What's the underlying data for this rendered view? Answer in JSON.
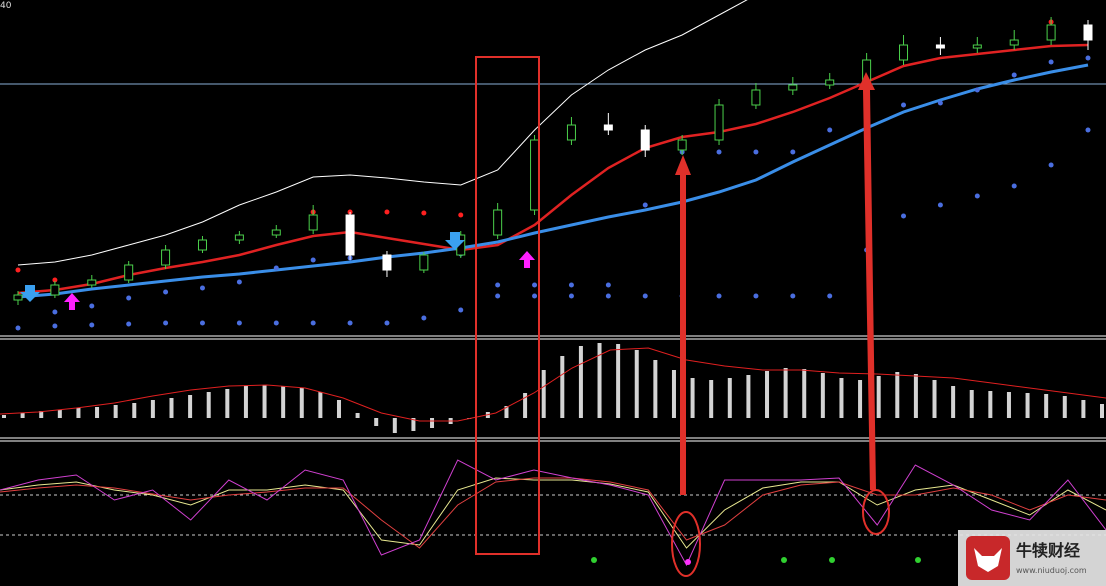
{
  "top_label": "40",
  "watermark": {
    "name": "牛犊财经",
    "url": "www.niuduoj.com"
  },
  "chart_data": [
    {
      "type": "candlestick",
      "ylim": [
        0,
        335
      ],
      "up_color": "#4bd14b",
      "down_color": "#ffffff",
      "open": [
        35,
        40,
        50,
        55,
        70,
        85,
        95,
        100,
        105,
        120,
        80,
        65,
        80,
        100,
        125,
        195,
        210,
        205,
        185,
        195,
        230,
        245,
        250,
        255,
        275,
        290,
        287,
        290,
        295,
        310
      ],
      "high": [
        44,
        54,
        60,
        74,
        90,
        99,
        104,
        110,
        130,
        123,
        84,
        83,
        104,
        132,
        200,
        218,
        222,
        210,
        200,
        236,
        252,
        258,
        262,
        282,
        300,
        298,
        298,
        305,
        318,
        315
      ],
      "low": [
        30,
        37,
        47,
        52,
        66,
        82,
        91,
        97,
        101,
        75,
        58,
        62,
        77,
        96,
        120,
        190,
        200,
        178,
        180,
        190,
        226,
        240,
        246,
        250,
        270,
        280,
        282,
        285,
        290,
        285
      ],
      "close": [
        40,
        50,
        55,
        70,
        85,
        95,
        100,
        105,
        120,
        80,
        65,
        80,
        100,
        125,
        195,
        210,
        205,
        185,
        195,
        230,
        245,
        250,
        255,
        275,
        290,
        287,
        290,
        295,
        310,
        295
      ],
      "series": [
        {
          "style": "line",
          "color": "#ffffff",
          "width": 1,
          "values": [
            70,
            73,
            80,
            90,
            100,
            113,
            130,
            143,
            158,
            160,
            157,
            153,
            150,
            165,
            205,
            240,
            265,
            285,
            300,
            320,
            340,
            null,
            null,
            null,
            null,
            null,
            null,
            null,
            null,
            null
          ]
        },
        {
          "style": "line",
          "color": "#e02222",
          "width": 2.5,
          "values": [
            42,
            45,
            51,
            60,
            67,
            73,
            80,
            90,
            99,
            103,
            97,
            91,
            85,
            90,
            110,
            140,
            167,
            187,
            198,
            203,
            211,
            223,
            237,
            253,
            269,
            277,
            281,
            285,
            289,
            290
          ]
        },
        {
          "style": "line",
          "color": "#3a8ee8",
          "width": 3,
          "values": [
            38,
            41,
            46,
            50,
            54,
            58,
            61,
            65,
            69,
            73,
            78,
            82,
            87,
            93,
            102,
            110,
            118,
            125,
            133,
            143,
            155,
            173,
            190,
            207,
            223,
            235,
            246,
            255,
            263,
            270
          ]
        },
        {
          "style": "dots",
          "color": "#4a6ee0",
          "values": [
            7,
            9,
            10,
            11,
            12,
            12,
            12,
            12,
            12,
            12,
            12,
            17,
            25,
            39,
            39,
            39,
            39,
            39,
            39,
            39,
            39,
            39,
            39,
            85,
            119,
            130,
            139,
            149,
            170,
            205
          ]
        },
        {
          "style": "dots",
          "color": "#4a6ee0",
          "values": [
            null,
            23,
            29,
            37,
            43,
            47,
            53,
            67,
            75,
            77,
            77,
            79,
            81,
            50,
            50,
            50,
            50,
            130,
            183,
            183,
            183,
            183,
            205,
            230,
            230,
            232,
            245,
            260,
            273,
            277
          ]
        },
        {
          "style": "dots",
          "color": "#ff2020",
          "values": [
            65,
            55,
            null,
            null,
            null,
            null,
            null,
            null,
            123,
            123,
            123,
            122,
            120,
            115,
            null,
            null,
            null,
            null,
            null,
            null,
            null,
            null,
            null,
            null,
            null,
            null,
            null,
            null,
            313,
            null
          ]
        }
      ]
    },
    {
      "type": "bar",
      "ylim": [
        -20,
        78
      ],
      "color": "#d4d4d4",
      "values": [
        3,
        5,
        7,
        8,
        10,
        11,
        13,
        15,
        18,
        20,
        23,
        26,
        29,
        32,
        33,
        32,
        30,
        26,
        18,
        5,
        -8,
        -15,
        -13,
        -10,
        -6,
        -1,
        6,
        12,
        25,
        48,
        62,
        72,
        75,
        74,
        68,
        58,
        48,
        40,
        38,
        40,
        43,
        47,
        50,
        49,
        45,
        40,
        38,
        42,
        46,
        44,
        38,
        32,
        28,
        27,
        26,
        25,
        24,
        22,
        18,
        14
      ],
      "series": [
        {
          "color": "#e02020",
          "values": [
            4,
            6,
            10,
            15,
            22,
            28,
            32,
            33,
            30,
            20,
            5,
            -3,
            -3,
            5,
            25,
            50,
            68,
            70,
            58,
            52,
            48,
            48,
            45,
            44,
            42,
            40,
            35,
            30,
            25,
            20
          ]
        }
      ]
    },
    {
      "type": "line",
      "ylim": [
        0,
        144
      ],
      "hlines": [
        91,
        51
      ],
      "series": [
        {
          "color": "#e8e890",
          "values": [
            96,
            101,
            104,
            96,
            91,
            81,
            96,
            96,
            101,
            96,
            46,
            41,
            96,
            108,
            106,
            106,
            102,
            94,
            38,
            76,
            98,
            104,
            104,
            81,
            96,
            101,
            86,
            71,
            96,
            76
          ]
        },
        {
          "color": "#e04040",
          "values": [
            94,
            98,
            101,
            98,
            92,
            86,
            91,
            94,
            98,
            98,
            66,
            38,
            81,
            104,
            108,
            108,
            104,
            96,
            46,
            61,
            91,
            101,
            104,
            91,
            91,
            98,
            91,
            76,
            91,
            86
          ]
        },
        {
          "color": "#d040d0",
          "values": [
            96,
            106,
            111,
            86,
            96,
            66,
            106,
            86,
            116,
            106,
            31,
            46,
            126,
            106,
            116,
            108,
            101,
            91,
            21,
            106,
            106,
            106,
            108,
            61,
            121,
            101,
            76,
            66,
            106,
            56
          ]
        }
      ]
    }
  ]
}
